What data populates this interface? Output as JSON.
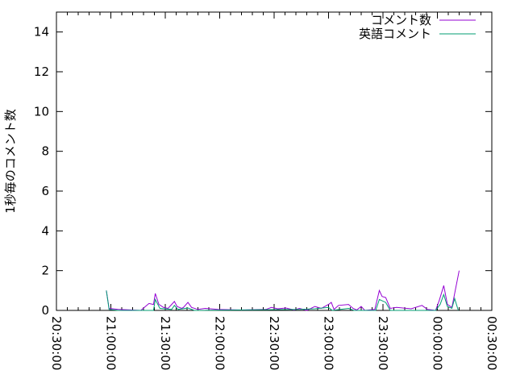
{
  "chart_data": {
    "type": "line",
    "title": "",
    "xlabel": "",
    "ylabel": "1秒毎のコメント数",
    "xlim": [
      "20:30:00",
      "00:30:00"
    ],
    "ylim": [
      0,
      15
    ],
    "xticks": [
      "20:30:00",
      "21:00:00",
      "21:30:00",
      "22:00:00",
      "22:30:00",
      "23:00:00",
      "23:30:00",
      "00:00:00",
      "00:30:00"
    ],
    "yticks": [
      0,
      2,
      4,
      6,
      8,
      10,
      12,
      14
    ],
    "grid": false,
    "legend_position": "top-right",
    "series": [
      {
        "name": "コメント数",
        "color": "#9400d3",
        "points": [
          [
            "20:57:30",
            1.0
          ],
          [
            "20:59:00",
            0.1
          ],
          [
            "21:04:00",
            0.05
          ],
          [
            "21:16:30",
            0
          ],
          [
            "21:21:00",
            0.35
          ],
          [
            "21:23:30",
            0.3
          ],
          [
            "21:24:30",
            0.85
          ],
          [
            "21:26:30",
            0.3
          ],
          [
            "21:29:00",
            0.15
          ],
          [
            "21:31:30",
            0.1
          ],
          [
            "21:33:30",
            0.3
          ],
          [
            "21:35:00",
            0.45
          ],
          [
            "21:36:30",
            0.2
          ],
          [
            "21:39:00",
            0.1
          ],
          [
            "21:40:00",
            0.15
          ],
          [
            "21:42:30",
            0.4
          ],
          [
            "21:44:30",
            0.15
          ],
          [
            "21:48:00",
            0.05
          ],
          [
            "21:52:00",
            0.1
          ],
          [
            "21:59:00",
            0.05
          ],
          [
            "22:12:00",
            0.02
          ],
          [
            "22:25:30",
            0.05
          ],
          [
            "22:28:30",
            0.15
          ],
          [
            "22:32:00",
            0.08
          ],
          [
            "22:36:30",
            0.12
          ],
          [
            "22:41:00",
            0.02
          ],
          [
            "22:44:00",
            0.1
          ],
          [
            "22:48:00",
            0
          ],
          [
            "22:52:30",
            0.2
          ],
          [
            "22:56:00",
            0.1
          ],
          [
            "23:00:00",
            0.3
          ],
          [
            "23:01:30",
            0.4
          ],
          [
            "23:03:00",
            0.05
          ],
          [
            "23:05:30",
            0.25
          ],
          [
            "23:11:00",
            0.3
          ],
          [
            "23:13:30",
            0.1
          ],
          [
            "23:15:30",
            0.02
          ],
          [
            "23:18:00",
            0.2
          ],
          [
            "23:20:00",
            0
          ],
          [
            "23:25:30",
            0.05
          ],
          [
            "23:28:00",
            1.0
          ],
          [
            "23:29:30",
            0.7
          ],
          [
            "23:31:30",
            0.65
          ],
          [
            "23:34:00",
            0.1
          ],
          [
            "23:37:30",
            0.15
          ],
          [
            "23:45:30",
            0.08
          ],
          [
            "23:51:30",
            0.25
          ],
          [
            "23:54:30",
            0.05
          ],
          [
            "23:59:00",
            0
          ],
          [
            "00:01:00",
            0.5
          ],
          [
            "00:03:30",
            1.25
          ],
          [
            "00:05:30",
            0.3
          ],
          [
            "00:08:00",
            0.15
          ],
          [
            "00:12:00",
            2.0
          ]
        ]
      },
      {
        "name": "英語コメント",
        "color": "#009e73",
        "points": [
          [
            "20:57:30",
            1.0
          ],
          [
            "20:59:00",
            0.05
          ],
          [
            "21:04:00",
            0
          ],
          [
            "21:23:30",
            0
          ],
          [
            "21:24:30",
            0.55
          ],
          [
            "21:27:00",
            0.1
          ],
          [
            "21:33:30",
            0.05
          ],
          [
            "21:35:00",
            0.25
          ],
          [
            "21:37:00",
            0.05
          ],
          [
            "21:42:30",
            0.12
          ],
          [
            "21:46:00",
            0
          ],
          [
            "22:44:00",
            0.05
          ],
          [
            "22:52:30",
            0.08
          ],
          [
            "23:00:00",
            0.15
          ],
          [
            "23:02:00",
            0
          ],
          [
            "23:11:00",
            0.1
          ],
          [
            "23:14:00",
            0
          ],
          [
            "23:26:00",
            0
          ],
          [
            "23:28:00",
            0.55
          ],
          [
            "23:31:30",
            0.4
          ],
          [
            "23:34:00",
            0
          ],
          [
            "23:59:00",
            0
          ],
          [
            "00:01:30",
            0.3
          ],
          [
            "00:03:30",
            0.8
          ],
          [
            "00:05:30",
            0.2
          ],
          [
            "00:08:00",
            0.1
          ],
          [
            "00:09:30",
            0.6
          ],
          [
            "00:11:30",
            0
          ]
        ]
      }
    ]
  }
}
